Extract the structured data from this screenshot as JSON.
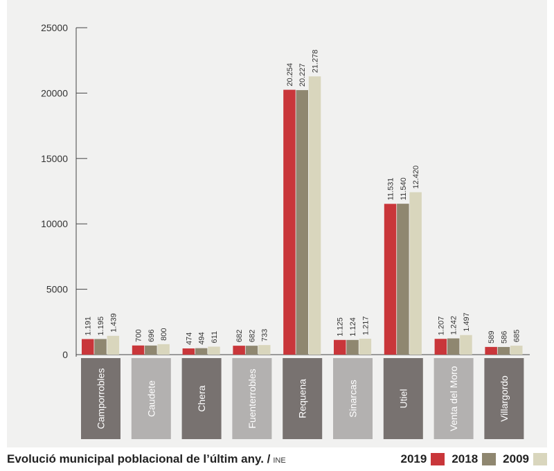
{
  "chart_data": {
    "type": "bar",
    "title": "Evolució municipal poblacional de l’últim any. /",
    "source": "INE",
    "categories": [
      "Camporrobles",
      "Caudete",
      "Chera",
      "Fuenterrobles",
      "Requena",
      "Sinarcas",
      "Utiel",
      "Venta del Moro",
      "Villargordo"
    ],
    "category_colors": [
      "#787270",
      "#b3b1b0",
      "#787270",
      "#b3b1b0",
      "#787270",
      "#b3b1b0",
      "#787270",
      "#b3b1b0",
      "#787270"
    ],
    "series": [
      {
        "name": "2019",
        "color": "#c9363a",
        "values": [
          1191,
          700,
          474,
          682,
          20254,
          1125,
          11531,
          1207,
          589
        ],
        "labels": [
          "1.191",
          "700",
          "474",
          "682",
          "20.254",
          "1.125",
          "11.531",
          "1.207",
          "589"
        ]
      },
      {
        "name": "2018",
        "color": "#8f8770",
        "values": [
          1195,
          696,
          494,
          682,
          20227,
          1124,
          11540,
          1242,
          586
        ],
        "labels": [
          "1.195",
          "696",
          "494",
          "682",
          "20.227",
          "1.124",
          "11.540",
          "1.242",
          "586"
        ]
      },
      {
        "name": "2009",
        "color": "#d9d6bd",
        "values": [
          1439,
          800,
          611,
          733,
          21278,
          1217,
          12420,
          1497,
          685
        ],
        "labels": [
          "1.439",
          "800",
          "611",
          "733",
          "21.278",
          "1.217",
          "12.420",
          "1.497",
          "685"
        ]
      }
    ],
    "yticks": [
      "25000",
      "20000",
      "15000",
      "10000",
      "5000",
      "0"
    ],
    "ylim": [
      0,
      25000
    ],
    "grid": false,
    "legend_position": "bottom-right"
  }
}
